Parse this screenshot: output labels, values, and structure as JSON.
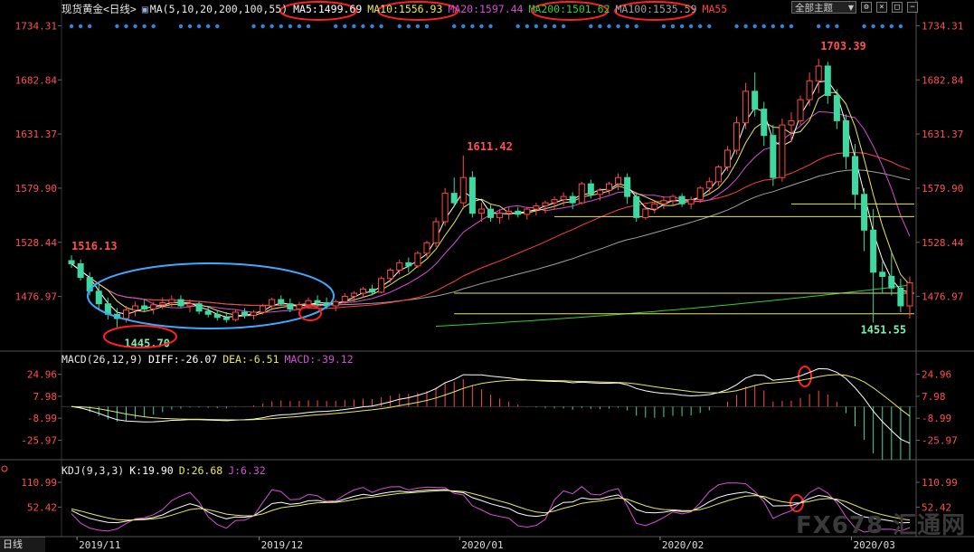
{
  "header": {
    "instrument": "现货黄金",
    "period": "<日线>",
    "ma_label": "MA(5,10,20,200,100,55)",
    "ma5": "MA5:1499.69",
    "ma10": "MA10:1556.93",
    "ma20": "MA20:1597.44",
    "ma200": "MA200:1501.62",
    "ma100": "MA100:1535.59",
    "ma55": "MA55",
    "theme_button": "全部主题",
    "theme_arrow": "▼"
  },
  "colors": {
    "up": "#ff4b3e",
    "down": "#3fd8a0",
    "ma5": "#ffffff",
    "ma10": "#e8e85a",
    "ma20": "#d34fd3",
    "ma55": "#ff4040",
    "ma100": "#a0a0a0",
    "ma200": "#33d033",
    "annotation": "#ff2020",
    "ellipse": "#3fa9ff"
  },
  "chart_data": [
    {
      "type": "candlestick",
      "name": "main",
      "y_ticks": [
        "1734.31",
        "1682.84",
        "1631.37",
        "1579.90",
        "1528.44",
        "1476.97"
      ],
      "ylim": [
        1425,
        1745
      ],
      "x_ticks": [
        "2019/11",
        "2019/12",
        "2020/01",
        "2020/02",
        "2020/03"
      ],
      "annotations": [
        "1516.13",
        "1445.70",
        "1611.42",
        "1703.39",
        "1451.55"
      ],
      "horizontal_levels": [
        1564.9,
        1552.8,
        1480.1,
        1460.5
      ],
      "ohlc": [
        [
          1511,
          1516,
          1504,
          1508
        ],
        [
          1508,
          1512,
          1492,
          1495
        ],
        [
          1495,
          1500,
          1478,
          1482
        ],
        [
          1482,
          1488,
          1465,
          1470
        ],
        [
          1470,
          1476,
          1455,
          1460
        ],
        [
          1460,
          1466,
          1446,
          1456
        ],
        [
          1456,
          1468,
          1452,
          1464
        ],
        [
          1464,
          1472,
          1458,
          1468
        ],
        [
          1468,
          1474,
          1462,
          1465
        ],
        [
          1465,
          1472,
          1460,
          1469
        ],
        [
          1469,
          1476,
          1465,
          1471
        ],
        [
          1471,
          1478,
          1467,
          1474
        ],
        [
          1474,
          1478,
          1466,
          1468
        ],
        [
          1468,
          1474,
          1462,
          1470
        ],
        [
          1470,
          1472,
          1460,
          1463
        ],
        [
          1463,
          1468,
          1457,
          1460
        ],
        [
          1460,
          1464,
          1454,
          1457
        ],
        [
          1457,
          1462,
          1452,
          1455
        ],
        [
          1455,
          1465,
          1453,
          1462
        ],
        [
          1462,
          1466,
          1456,
          1459
        ],
        [
          1459,
          1464,
          1455,
          1462
        ],
        [
          1462,
          1470,
          1460,
          1468
        ],
        [
          1468,
          1476,
          1464,
          1474
        ],
        [
          1474,
          1478,
          1468,
          1470
        ],
        [
          1470,
          1475,
          1462,
          1465
        ],
        [
          1465,
          1472,
          1461,
          1469
        ],
        [
          1469,
          1476,
          1466,
          1473
        ],
        [
          1473,
          1478,
          1468,
          1471
        ],
        [
          1471,
          1476,
          1465,
          1468
        ],
        [
          1468,
          1474,
          1463,
          1472
        ],
        [
          1472,
          1480,
          1470,
          1477
        ],
        [
          1477,
          1482,
          1472,
          1480
        ],
        [
          1480,
          1486,
          1476,
          1484
        ],
        [
          1484,
          1488,
          1478,
          1481
        ],
        [
          1481,
          1496,
          1480,
          1494
        ],
        [
          1494,
          1504,
          1490,
          1502
        ],
        [
          1502,
          1512,
          1498,
          1509
        ],
        [
          1509,
          1514,
          1500,
          1506
        ],
        [
          1506,
          1520,
          1504,
          1518
        ],
        [
          1518,
          1530,
          1514,
          1528
        ],
        [
          1528,
          1552,
          1524,
          1548
        ],
        [
          1548,
          1580,
          1544,
          1575
        ],
        [
          1575,
          1590,
          1562,
          1566
        ],
        [
          1566,
          1611,
          1560,
          1590
        ],
        [
          1590,
          1596,
          1552,
          1556
        ],
        [
          1556,
          1566,
          1548,
          1560
        ],
        [
          1560,
          1564,
          1548,
          1552
        ],
        [
          1552,
          1560,
          1546,
          1556
        ],
        [
          1556,
          1562,
          1550,
          1558
        ],
        [
          1558,
          1562,
          1552,
          1555
        ],
        [
          1555,
          1562,
          1550,
          1560
        ],
        [
          1560,
          1566,
          1554,
          1563
        ],
        [
          1563,
          1568,
          1556,
          1566
        ],
        [
          1566,
          1572,
          1560,
          1569
        ],
        [
          1569,
          1576,
          1563,
          1572
        ],
        [
          1572,
          1576,
          1560,
          1566
        ],
        [
          1566,
          1586,
          1564,
          1584
        ],
        [
          1584,
          1588,
          1570,
          1574
        ],
        [
          1574,
          1580,
          1568,
          1578
        ],
        [
          1578,
          1586,
          1574,
          1584
        ],
        [
          1584,
          1594,
          1578,
          1590
        ],
        [
          1590,
          1594,
          1565,
          1572
        ],
        [
          1572,
          1576,
          1548,
          1552
        ],
        [
          1552,
          1564,
          1550,
          1560
        ],
        [
          1560,
          1568,
          1556,
          1565
        ],
        [
          1565,
          1572,
          1560,
          1568
        ],
        [
          1568,
          1574,
          1564,
          1572
        ],
        [
          1572,
          1575,
          1562,
          1565
        ],
        [
          1565,
          1572,
          1560,
          1569
        ],
        [
          1569,
          1582,
          1566,
          1580
        ],
        [
          1580,
          1590,
          1576,
          1586
        ],
        [
          1586,
          1602,
          1582,
          1600
        ],
        [
          1600,
          1620,
          1596,
          1616
        ],
        [
          1616,
          1648,
          1612,
          1642
        ],
        [
          1642,
          1680,
          1636,
          1672
        ],
        [
          1672,
          1690,
          1648,
          1655
        ],
        [
          1655,
          1662,
          1620,
          1630
        ],
        [
          1630,
          1640,
          1582,
          1590
        ],
        [
          1590,
          1646,
          1586,
          1640
        ],
        [
          1640,
          1652,
          1624,
          1644
        ],
        [
          1644,
          1668,
          1640,
          1664
        ],
        [
          1664,
          1690,
          1658,
          1682
        ],
        [
          1682,
          1703,
          1670,
          1696
        ],
        [
          1696,
          1700,
          1660,
          1668
        ],
        [
          1668,
          1674,
          1636,
          1644
        ],
        [
          1644,
          1650,
          1598,
          1610
        ],
        [
          1610,
          1622,
          1560,
          1574
        ],
        [
          1574,
          1580,
          1520,
          1540
        ],
        [
          1540,
          1560,
          1452,
          1500
        ],
        [
          1500,
          1510,
          1480,
          1496
        ],
        [
          1496,
          1520,
          1478,
          1485
        ],
        [
          1485,
          1494,
          1462,
          1468
        ],
        [
          1468,
          1496,
          1456,
          1490
        ]
      ]
    },
    {
      "type": "macd",
      "name": "MACD(26,12,9)",
      "diff": "DIFF:-26.07",
      "dea": "DEA:-6.51",
      "macd": "MACD:-39.12",
      "y_ticks": [
        "24.96",
        "7.98",
        "-8.99",
        "-25.97"
      ],
      "ylim": [
        -41,
        31
      ]
    },
    {
      "type": "kdj",
      "name": "KDJ(9,3,3)",
      "k": "K:19.90",
      "d": "D:26.68",
      "j": "J:6.32",
      "y_ticks": [
        "110.99",
        "52.42"
      ],
      "ylim": [
        -15,
        128
      ]
    }
  ],
  "bottom_tab": "日线",
  "watermark": "FX678 汇通网"
}
